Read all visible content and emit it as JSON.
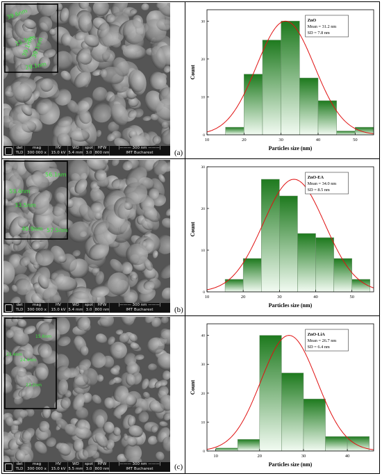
{
  "figure": {
    "panels": [
      {
        "label": "(a)",
        "sem": {
          "measurements": [
            "39.6nm",
            "15.3nm",
            "39.1nm",
            "39.1nm",
            "29.1nm"
          ],
          "info_bar": {
            "det": "det",
            "det_v": "TLD",
            "mag": "mag",
            "mag_v": "300 000 x",
            "hv": "HV",
            "hv_v": "15.0 kV",
            "wd": "WD",
            "wd_v": "5.4 mm",
            "spot": "spot",
            "spot_v": "3.0",
            "hfw": "HFW",
            "hfw_v": "800 nm",
            "scale": "300 nm",
            "org": "IMT Bucharest"
          }
        }
      },
      {
        "label": "(b)",
        "sem": {
          "measurements": [
            "56.1nm",
            "53.4nm",
            "33.5nm",
            "49.9nm",
            "57.5nm"
          ],
          "info_bar": {
            "det": "det",
            "det_v": "TLD",
            "mag": "mag",
            "mag_v": "300 000 x",
            "hv": "HV",
            "hv_v": "15.0 kV",
            "wd": "WD",
            "wd_v": "5.4 mm",
            "spot": "spot",
            "spot_v": "3.0",
            "hfw": "HFW",
            "hfw_v": "800 nm",
            "scale": "300 nm",
            "org": "IMT Bucharest"
          }
        }
      },
      {
        "label": "(c)",
        "sem": {
          "measurements": [
            "15.6nm",
            "23.4nm",
            "24.4nm",
            "23.2nm"
          ],
          "info_bar": {
            "det": "det",
            "det_v": "TLD",
            "mag": "mag",
            "mag_v": "300 000 x",
            "hv": "HV",
            "hv_v": "15.0 kV",
            "wd": "WD",
            "wd_v": "5.5 mm",
            "spot": "spot",
            "spot_v": "3.0",
            "hfw": "HFW",
            "hfw_v": "800 nm",
            "scale": "300 nm",
            "org": "IMT Bucharest"
          }
        }
      }
    ]
  },
  "colors": {
    "bar_dark": "#1e7a1e",
    "bar_light": "#f2fbf2",
    "curve": "#e01010",
    "measure_text": "#39e639"
  },
  "chart_data": [
    {
      "type": "bar",
      "title": "",
      "legend": [
        "ZnO",
        "Mean = 31.2 nm",
        "SD = 7.8 nm"
      ],
      "xlabel": "Particles size (nm)",
      "ylabel": "Count",
      "bin_edges": [
        15,
        20,
        25,
        30,
        35,
        40,
        45,
        50,
        55
      ],
      "values": [
        2,
        16,
        25,
        30,
        15,
        9,
        1,
        2
      ],
      "xlim": [
        10,
        55
      ],
      "ylim": [
        0,
        33
      ],
      "xticks": [
        10,
        20,
        30,
        40,
        50
      ],
      "yticks": [
        0,
        10,
        20,
        30
      ],
      "fit": {
        "type": "normal",
        "mean": 31.2,
        "sd": 7.8,
        "peak": 30
      }
    },
    {
      "type": "bar",
      "title": "",
      "legend": [
        "ZnO-EA",
        "Mean = 34.0 nm",
        "SD = 8.5 nm"
      ],
      "xlabel": "Particles size (nm)",
      "ylabel": "Count",
      "bin_edges": [
        15,
        20,
        25,
        30,
        35,
        40,
        45,
        50,
        55
      ],
      "values": [
        3,
        8,
        27,
        23,
        14,
        13,
        8,
        3
      ],
      "xlim": [
        10,
        56
      ],
      "ylim": [
        0,
        30
      ],
      "xticks": [
        10,
        20,
        30,
        40,
        50
      ],
      "yticks": [
        0,
        10,
        20,
        30
      ],
      "fit": {
        "type": "normal",
        "mean": 34.0,
        "sd": 8.5,
        "peak": 27
      }
    },
    {
      "type": "bar",
      "title": "",
      "legend": [
        "ZnO-LiA",
        "Mean = 26.7 nm",
        "SD = 6.4 nm"
      ],
      "xlabel": "Particles size (nm)",
      "ylabel": "Count",
      "bin_edges": [
        10,
        15,
        20,
        25,
        30,
        35,
        40,
        45
      ],
      "values": [
        1,
        4,
        40,
        27,
        18,
        5,
        5
      ],
      "xlim": [
        8,
        46
      ],
      "ylim": [
        0,
        44
      ],
      "xticks": [
        10,
        20,
        30,
        40
      ],
      "yticks": [
        0,
        10,
        20,
        30,
        40
      ],
      "fit": {
        "type": "normal",
        "mean": 26.7,
        "sd": 6.4,
        "peak": 40
      }
    }
  ]
}
